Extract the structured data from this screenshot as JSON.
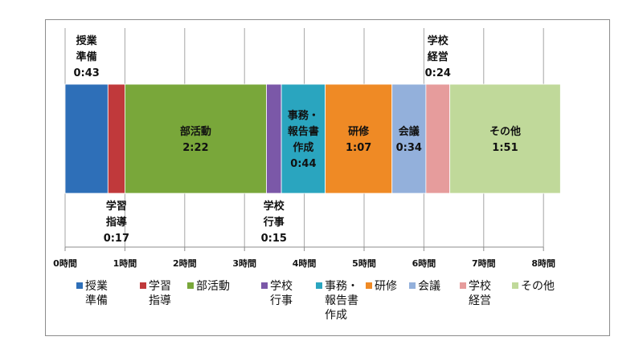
{
  "chart_data": {
    "type": "bar",
    "orientation": "horizontal-stacked",
    "title": "",
    "xlabel": "",
    "ylabel": "",
    "xlim": [
      0,
      8
    ],
    "x_ticks": [
      "0時間",
      "1時間",
      "2時間",
      "3時間",
      "4時間",
      "5時間",
      "6時間",
      "7時間",
      "8時間"
    ],
    "grid": true,
    "legend_position": "bottom",
    "segments": [
      {
        "name_lines": [
          "授業",
          "準備"
        ],
        "value_hours": 0.7167,
        "value_label": "0:43",
        "color": "#2e6fb8",
        "label_position": "above"
      },
      {
        "name_lines": [
          "学習",
          "指導"
        ],
        "value_hours": 0.2833,
        "value_label": "0:17",
        "color": "#c0393b",
        "label_position": "below"
      },
      {
        "name_lines": [
          "部活動"
        ],
        "value_hours": 2.3667,
        "value_label": "2:22",
        "color": "#79a73a",
        "label_position": "inside"
      },
      {
        "name_lines": [
          "学校",
          "行事"
        ],
        "value_hours": 0.25,
        "value_label": "0:15",
        "color": "#7b58a8",
        "label_position": "below"
      },
      {
        "name_lines": [
          "事務・",
          "報告書",
          "作成"
        ],
        "value_hours": 0.7333,
        "value_label": "0:44",
        "color": "#2aa5bf",
        "label_position": "inside"
      },
      {
        "name_lines": [
          "研修"
        ],
        "value_hours": 1.1167,
        "value_label": "1:07",
        "color": "#ef8a25",
        "label_position": "inside"
      },
      {
        "name_lines": [
          "会議"
        ],
        "value_hours": 0.5667,
        "value_label": "0:34",
        "color": "#93b0db",
        "label_position": "inside"
      },
      {
        "name_lines": [
          "学校",
          "経営"
        ],
        "value_hours": 0.4,
        "value_label": "0:24",
        "color": "#e69c9c",
        "label_position": "above"
      },
      {
        "name_lines": [
          "その他"
        ],
        "value_hours": 1.85,
        "value_label": "1:51",
        "color": "#c0d99a",
        "label_position": "inside"
      }
    ]
  }
}
